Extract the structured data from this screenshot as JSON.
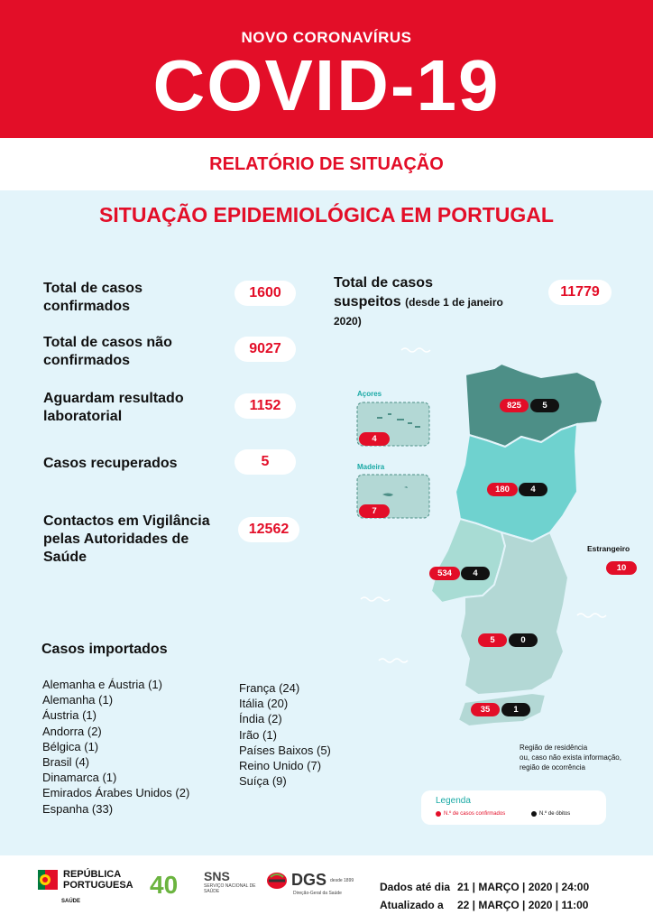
{
  "header": {
    "kicker": "NOVO CORONAVÍRUS",
    "title": "COVID-19",
    "report": "RELATÓRIO DE SITUAÇÃO",
    "brand_color": "#e30e28"
  },
  "section_title": "SITUAÇÃO EPIDEMIOLÓGICA EM PORTUGAL",
  "stats": {
    "confirmed": {
      "label_line1": "Total de casos",
      "label_line2": "confirmados",
      "value": "1600"
    },
    "not_confirmed": {
      "label_line1": "Total de casos não",
      "label_line2": "confirmados",
      "value": "9027"
    },
    "awaiting": {
      "label_line1": "Aguardam resultado",
      "label_line2": "laboratorial",
      "value": "1152"
    },
    "recovered": {
      "label": "Casos recuperados",
      "value": "5"
    },
    "contacts": {
      "label_line1": "Contactos em Vigilância",
      "label_line2": "pelas Autoridades de",
      "label_line3": "Saúde",
      "value": "12562"
    },
    "suspected": {
      "label_line1": "Total de casos",
      "label_line2": "suspeitos",
      "label_small": "(desde 1 de janeiro",
      "label_small2": "2020)",
      "value": "11779"
    }
  },
  "imported": {
    "title": "Casos importados",
    "col1": [
      "Alemanha e Áustria (1)",
      "Alemanha (1)",
      "Áustria (1)",
      "Andorra (2)",
      "Bélgica (1)",
      "Brasil (4)",
      "Dinamarca (1)",
      "Emirados Árabes Unidos (2)",
      "Espanha (33)"
    ],
    "col2": [
      "França (24)",
      "Itália (20)",
      "Índia (2)",
      "Irão (1)",
      "Países Baixos (5)",
      "Reino Unido (7)",
      "Suíça (9)"
    ]
  },
  "map": {
    "acores": {
      "label": "Açores",
      "confirmed": "4"
    },
    "madeira": {
      "label": "Madeira",
      "confirmed": "7"
    },
    "norte": {
      "confirmed": "825",
      "deaths": "5"
    },
    "centro": {
      "confirmed": "180",
      "deaths": "4"
    },
    "lisboa": {
      "confirmed": "534",
      "deaths": "4"
    },
    "alentejo": {
      "confirmed": "5",
      "deaths": "0"
    },
    "algarve": {
      "confirmed": "35",
      "deaths": "1"
    },
    "foreign": {
      "label": "Estrangeiro",
      "confirmed": "10"
    },
    "note_line1": "Região de residência",
    "note_line2": "ou, caso não exista informação,",
    "note_line3": "região de ocorrência"
  },
  "legend": {
    "title": "Legenda",
    "confirmed_label": "N.º de casos confirmados",
    "deaths_label": "N.º de óbitos"
  },
  "footer": {
    "rep_line1": "REPÚBLICA",
    "rep_line2": "PORTUGUESA",
    "rep_sub": "SAÚDE",
    "logo_40": "40",
    "sns": "SNS",
    "sns_sub": "SERVIÇO NACIONAL DE SAÚDE",
    "dgs": "DGS",
    "dgs_since": "desde 1899",
    "dgs_sub": "Direção-Geral da Saúde",
    "data_label": "Dados até dia",
    "data_value": "21 | MARÇO | 2020 | 24:00",
    "updated_label": "Atualizado a",
    "updated_value": "22 | MARÇO | 2020 | 11:00"
  }
}
